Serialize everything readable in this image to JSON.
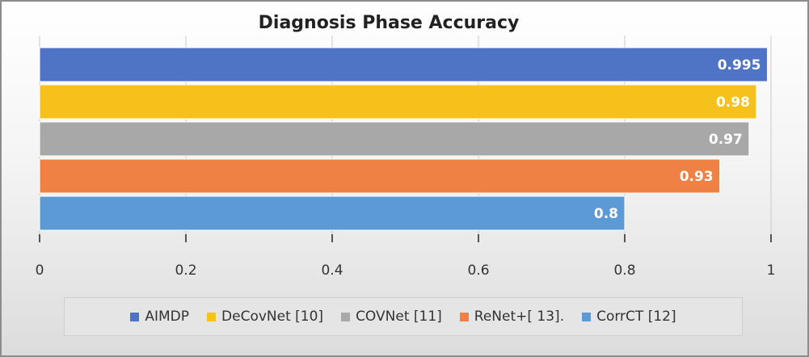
{
  "chart_data": {
    "type": "bar",
    "orientation": "horizontal",
    "title": "Diagnosis Phase Accuracy",
    "xlabel": "",
    "ylabel": "",
    "xlim": [
      0,
      1
    ],
    "x_ticks": [
      "0",
      "0.2",
      "0.4",
      "0.6",
      "0.8",
      "1"
    ],
    "x_tick_values": [
      0,
      0.2,
      0.4,
      0.6,
      0.8,
      1
    ],
    "grid": true,
    "legend_position": "bottom",
    "series": [
      {
        "name": "AIMDP",
        "value": 0.995,
        "label": "0.995",
        "color": "#4f73c5"
      },
      {
        "name": "DeCovNet [10]",
        "value": 0.98,
        "label": "0.98",
        "color": "#f6c11a"
      },
      {
        "name": "COVNet [11]",
        "value": 0.97,
        "label": "0.97",
        "color": "#a8a8a8"
      },
      {
        "name": "ReNet+[ 13].",
        "value": 0.93,
        "label": "0.93",
        "color": "#ee8143"
      },
      {
        "name": "CorrCT [12]",
        "value": 0.8,
        "label": "0.8",
        "color": "#5c9ad6"
      }
    ]
  }
}
